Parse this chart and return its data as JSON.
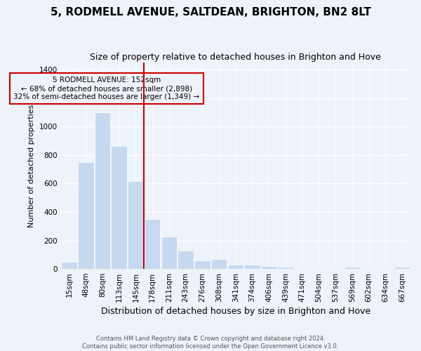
{
  "title1": "5, RODMELL AVENUE, SALTDEAN, BRIGHTON, BN2 8LT",
  "title2": "Size of property relative to detached houses in Brighton and Hove",
  "xlabel": "Distribution of detached houses by size in Brighton and Hove",
  "ylabel": "Number of detached properties",
  "footer1": "Contains HM Land Registry data © Crown copyright and database right 2024.",
  "footer2": "Contains public sector information licensed under the Open Government Licence v3.0.",
  "annotation_line1": "5 RODMELL AVENUE: 152sqm",
  "annotation_line2": "← 68% of detached houses are smaller (2,898)",
  "annotation_line3": "32% of semi-detached houses are larger (1,349) →",
  "bar_color": "#c5d9f0",
  "bar_edge_color": "white",
  "vline_color": "#cc0000",
  "vline_bar_index": 4,
  "categories": [
    "15sqm",
    "48sqm",
    "80sqm",
    "113sqm",
    "145sqm",
    "178sqm",
    "211sqm",
    "243sqm",
    "276sqm",
    "308sqm",
    "341sqm",
    "374sqm",
    "406sqm",
    "439sqm",
    "471sqm",
    "504sqm",
    "537sqm",
    "569sqm",
    "602sqm",
    "634sqm",
    "667sqm"
  ],
  "values": [
    48,
    750,
    1100,
    865,
    615,
    350,
    225,
    130,
    62,
    70,
    28,
    28,
    20,
    15,
    0,
    0,
    0,
    15,
    0,
    0,
    15
  ],
  "ylim": [
    0,
    1450
  ],
  "yticks": [
    0,
    200,
    400,
    600,
    800,
    1000,
    1200,
    1400
  ],
  "background_color": "#eef2f9",
  "grid_color": "white",
  "annotation_box_color": "#eef2f9",
  "annotation_border_color": "#cc0000",
  "title1_fontsize": 11,
  "title2_fontsize": 9,
  "xlabel_fontsize": 9,
  "ylabel_fontsize": 8,
  "footer_fontsize": 6,
  "tick_fontsize": 7.5
}
